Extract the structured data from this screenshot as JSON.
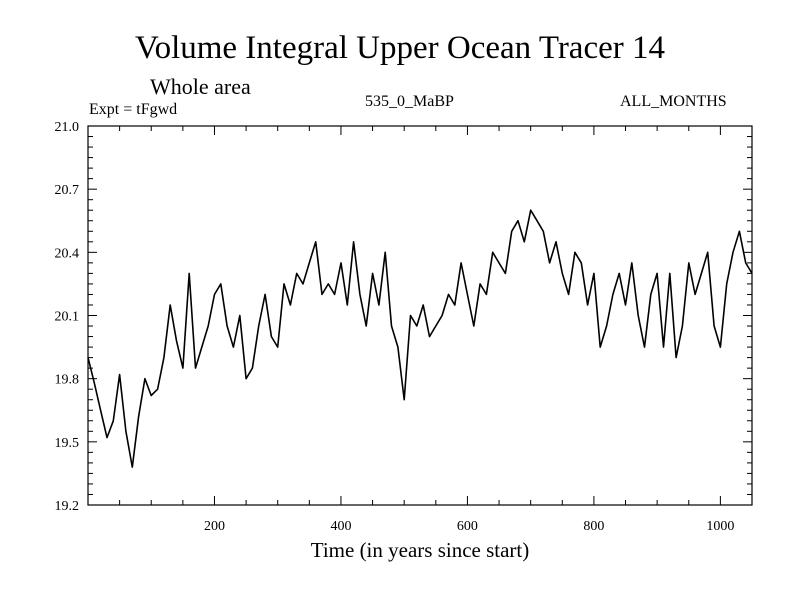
{
  "header": {
    "title": "Volume Integral Upper Ocean Tracer 14",
    "subtitle": "Whole area",
    "experiment": "Expt = tFgwd",
    "run": "535_0_MaBP",
    "months": "ALL_MONTHS"
  },
  "chart_data": {
    "type": "line",
    "title": "Volume Integral Upper Ocean Tracer 14",
    "subtitle": "Whole area",
    "xlabel": "Time (in years since start)",
    "ylabel": "",
    "xlim": [
      0,
      1050
    ],
    "ylim": [
      19.2,
      21.0
    ],
    "x_ticks": [
      200,
      400,
      600,
      800,
      1000
    ],
    "y_ticks": [
      19.2,
      19.5,
      19.8,
      20.1,
      20.4,
      20.7,
      21.0
    ],
    "y_tick_labels": [
      "19.2",
      "19.5",
      "19.8",
      "20.1",
      "20.4",
      "20.7",
      "21.0"
    ],
    "grid": false,
    "series": [
      {
        "name": "tracer14",
        "x": [
          0,
          10,
          20,
          30,
          40,
          50,
          60,
          70,
          80,
          90,
          100,
          110,
          120,
          130,
          140,
          150,
          160,
          170,
          180,
          190,
          200,
          210,
          220,
          230,
          240,
          250,
          260,
          270,
          280,
          290,
          300,
          310,
          320,
          330,
          340,
          350,
          360,
          370,
          380,
          390,
          400,
          410,
          420,
          430,
          440,
          450,
          460,
          470,
          480,
          490,
          500,
          510,
          520,
          530,
          540,
          550,
          560,
          570,
          580,
          590,
          600,
          610,
          620,
          630,
          640,
          650,
          660,
          670,
          680,
          690,
          700,
          710,
          720,
          730,
          740,
          750,
          760,
          770,
          780,
          790,
          800,
          810,
          820,
          830,
          840,
          850,
          860,
          870,
          880,
          890,
          900,
          910,
          920,
          930,
          940,
          950,
          960,
          970,
          980,
          990,
          1000,
          1010,
          1020,
          1030,
          1040,
          1050
        ],
        "values": [
          19.9,
          19.78,
          19.65,
          19.52,
          19.6,
          19.82,
          19.55,
          19.38,
          19.62,
          19.8,
          19.72,
          19.75,
          19.9,
          20.15,
          19.98,
          19.85,
          20.3,
          19.85,
          19.95,
          20.05,
          20.2,
          20.25,
          20.05,
          19.95,
          20.1,
          19.8,
          19.85,
          20.05,
          20.2,
          20.0,
          19.95,
          20.25,
          20.15,
          20.3,
          20.25,
          20.35,
          20.45,
          20.2,
          20.25,
          20.2,
          20.35,
          20.15,
          20.45,
          20.2,
          20.05,
          20.3,
          20.15,
          20.4,
          20.05,
          19.95,
          19.7,
          20.1,
          20.05,
          20.15,
          20.0,
          20.05,
          20.1,
          20.2,
          20.15,
          20.35,
          20.2,
          20.05,
          20.25,
          20.2,
          20.4,
          20.35,
          20.3,
          20.5,
          20.55,
          20.45,
          20.6,
          20.55,
          20.5,
          20.35,
          20.45,
          20.3,
          20.2,
          20.4,
          20.35,
          20.15,
          20.3,
          19.95,
          20.05,
          20.2,
          20.3,
          20.15,
          20.35,
          20.1,
          19.95,
          20.2,
          20.3,
          19.95,
          20.3,
          19.9,
          20.05,
          20.35,
          20.2,
          20.3,
          20.4,
          20.05,
          19.95,
          20.25,
          20.4,
          20.5,
          20.35,
          20.3
        ]
      }
    ]
  }
}
